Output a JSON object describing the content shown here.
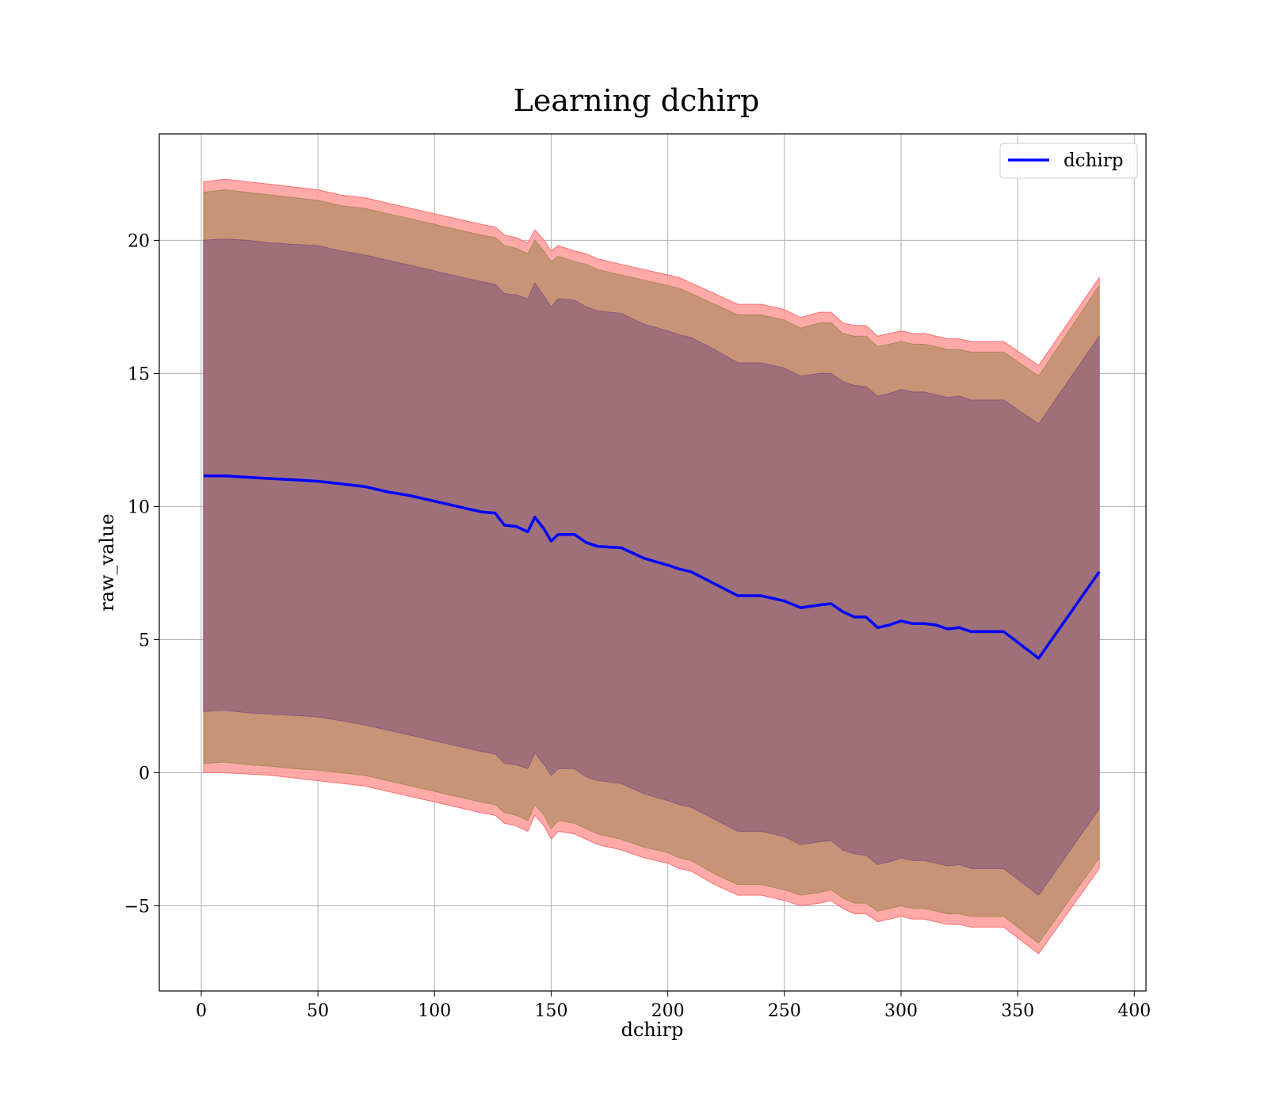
{
  "chart_data": {
    "type": "line",
    "title": "Learning dchirp",
    "xlabel": "dchirp",
    "ylabel": "raw_value",
    "xlim": [
      -18,
      405
    ],
    "ylim": [
      -8.2,
      24
    ],
    "xticks": [
      0,
      50,
      100,
      150,
      200,
      250,
      300,
      350,
      400
    ],
    "yticks": [
      -5,
      0,
      5,
      10,
      15,
      20
    ],
    "xtick_labels": [
      "0",
      "50",
      "100",
      "150",
      "200",
      "250",
      "300",
      "350",
      "400"
    ],
    "ytick_labels": [
      "−5",
      "0",
      "5",
      "10",
      "15",
      "20"
    ],
    "grid": true,
    "legend": {
      "position": "top-right",
      "entries": [
        "dchirp"
      ]
    },
    "colors": {
      "line": "#0000ff",
      "outer_band": "#ff9a9a",
      "middle_band": "#c89478",
      "inner_band": "#a0707a"
    },
    "x": [
      1,
      10,
      20,
      30,
      40,
      50,
      60,
      70,
      80,
      90,
      100,
      110,
      120,
      126,
      130,
      135,
      140,
      143,
      147,
      150,
      153,
      160,
      165,
      170,
      180,
      190,
      200,
      205,
      210,
      220,
      230,
      240,
      250,
      257,
      265,
      270,
      275,
      280,
      285,
      290,
      295,
      300,
      305,
      310,
      315,
      320,
      325,
      330,
      344,
      359,
      385
    ],
    "series": [
      {
        "name": "dchirp",
        "values": [
          11.15,
          11.15,
          11.1,
          11.05,
          11.0,
          10.95,
          10.85,
          10.75,
          10.55,
          10.4,
          10.2,
          10.0,
          9.8,
          9.75,
          9.3,
          9.25,
          9.05,
          9.6,
          9.15,
          8.7,
          8.95,
          8.95,
          8.65,
          8.5,
          8.45,
          8.05,
          7.8,
          7.65,
          7.55,
          7.1,
          6.65,
          6.65,
          6.45,
          6.2,
          6.3,
          6.35,
          6.05,
          5.85,
          5.85,
          5.45,
          5.55,
          5.7,
          5.6,
          5.6,
          5.55,
          5.4,
          5.45,
          5.3,
          5.3,
          4.3,
          7.55
        ]
      }
    ],
    "bands": [
      {
        "upper": [
          22.2,
          22.3,
          22.2,
          22.1,
          22.0,
          21.9,
          21.7,
          21.6,
          21.4,
          21.2,
          21.0,
          20.8,
          20.6,
          20.5,
          20.2,
          20.1,
          19.9,
          20.4,
          20.0,
          19.6,
          19.8,
          19.6,
          19.5,
          19.3,
          19.1,
          18.9,
          18.7,
          18.6,
          18.4,
          18.0,
          17.6,
          17.6,
          17.4,
          17.1,
          17.3,
          17.3,
          16.9,
          16.8,
          16.8,
          16.4,
          16.5,
          16.6,
          16.5,
          16.5,
          16.4,
          16.3,
          16.3,
          16.2,
          16.2,
          15.3,
          18.6
        ],
        "lower": [
          0.0,
          0.0,
          -0.05,
          -0.1,
          -0.2,
          -0.3,
          -0.4,
          -0.5,
          -0.7,
          -0.9,
          -1.1,
          -1.3,
          -1.5,
          -1.6,
          -1.9,
          -2.0,
          -2.2,
          -1.6,
          -2.0,
          -2.5,
          -2.2,
          -2.3,
          -2.5,
          -2.7,
          -2.9,
          -3.2,
          -3.4,
          -3.6,
          -3.7,
          -4.2,
          -4.6,
          -4.6,
          -4.8,
          -5.0,
          -4.9,
          -4.8,
          -5.1,
          -5.3,
          -5.3,
          -5.6,
          -5.5,
          -5.4,
          -5.5,
          -5.5,
          -5.6,
          -5.7,
          -5.7,
          -5.8,
          -5.8,
          -6.8,
          -3.6
        ]
      },
      {
        "upper": [
          21.8,
          21.9,
          21.8,
          21.7,
          21.6,
          21.5,
          21.3,
          21.2,
          21.0,
          20.8,
          20.6,
          20.4,
          20.2,
          20.1,
          19.8,
          19.7,
          19.5,
          20.0,
          19.6,
          19.2,
          19.4,
          19.2,
          19.1,
          18.9,
          18.7,
          18.5,
          18.3,
          18.2,
          18.0,
          17.6,
          17.2,
          17.2,
          17.0,
          16.7,
          16.9,
          16.9,
          16.5,
          16.4,
          16.4,
          16.0,
          16.1,
          16.2,
          16.1,
          16.1,
          16.0,
          15.9,
          15.9,
          15.8,
          15.8,
          14.9,
          18.3
        ],
        "lower": [
          0.35,
          0.4,
          0.3,
          0.25,
          0.15,
          0.1,
          0.0,
          -0.1,
          -0.3,
          -0.5,
          -0.7,
          -0.9,
          -1.1,
          -1.2,
          -1.5,
          -1.6,
          -1.8,
          -1.2,
          -1.6,
          -2.1,
          -1.8,
          -1.9,
          -2.1,
          -2.3,
          -2.5,
          -2.8,
          -3.0,
          -3.2,
          -3.3,
          -3.8,
          -4.2,
          -4.2,
          -4.4,
          -4.6,
          -4.5,
          -4.4,
          -4.7,
          -4.9,
          -4.9,
          -5.2,
          -5.1,
          -5.0,
          -5.1,
          -5.1,
          -5.2,
          -5.3,
          -5.3,
          -5.4,
          -5.4,
          -6.4,
          -3.2
        ]
      },
      {
        "upper": [
          20.0,
          20.05,
          20.0,
          19.9,
          19.85,
          19.8,
          19.6,
          19.45,
          19.25,
          19.05,
          18.85,
          18.65,
          18.45,
          18.35,
          18.0,
          17.95,
          17.8,
          18.4,
          17.9,
          17.5,
          17.8,
          17.75,
          17.5,
          17.35,
          17.25,
          16.85,
          16.6,
          16.45,
          16.35,
          15.9,
          15.4,
          15.4,
          15.2,
          14.9,
          15.0,
          15.0,
          14.7,
          14.55,
          14.5,
          14.15,
          14.25,
          14.4,
          14.3,
          14.3,
          14.2,
          14.1,
          14.15,
          14.0,
          14.0,
          13.1,
          16.4
        ],
        "lower": [
          2.3,
          2.35,
          2.25,
          2.2,
          2.15,
          2.1,
          1.95,
          1.8,
          1.6,
          1.4,
          1.2,
          1.0,
          0.8,
          0.7,
          0.35,
          0.3,
          0.15,
          0.75,
          0.3,
          -0.1,
          0.15,
          0.15,
          -0.15,
          -0.3,
          -0.4,
          -0.8,
          -1.05,
          -1.2,
          -1.3,
          -1.75,
          -2.2,
          -2.2,
          -2.4,
          -2.7,
          -2.6,
          -2.55,
          -2.9,
          -3.05,
          -3.1,
          -3.45,
          -3.35,
          -3.2,
          -3.3,
          -3.3,
          -3.4,
          -3.5,
          -3.45,
          -3.6,
          -3.6,
          -4.6,
          -1.35
        ]
      }
    ]
  }
}
